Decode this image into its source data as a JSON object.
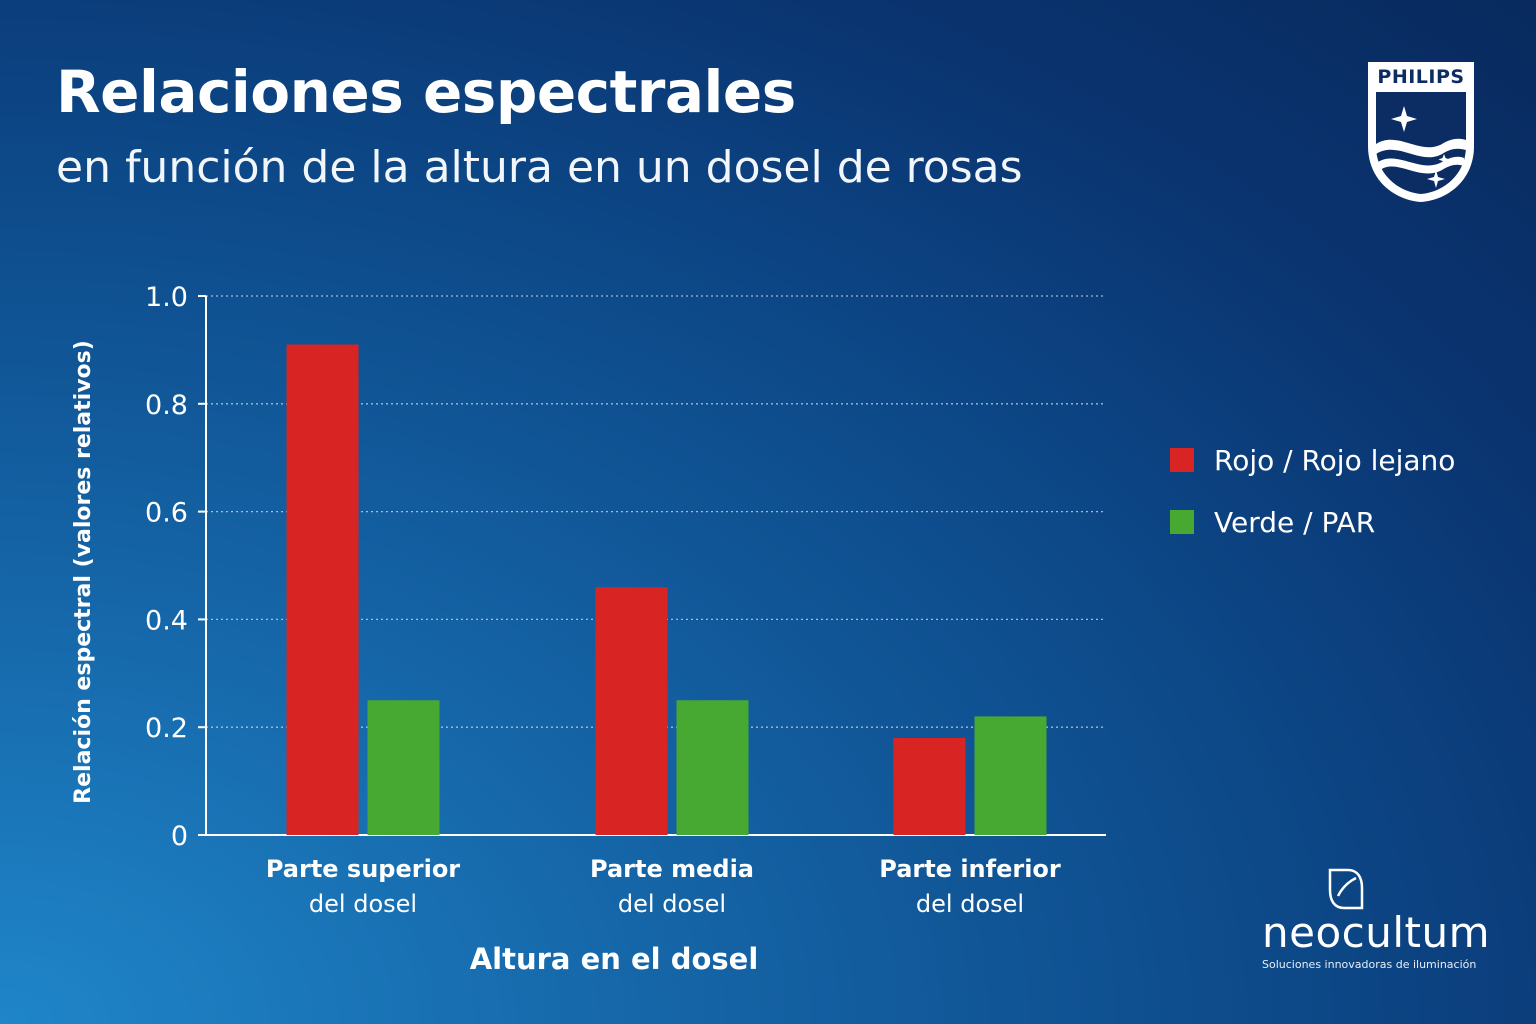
{
  "header": {
    "title": "Relaciones espectrales",
    "subtitle": "en función de la altura en un dosel de rosas"
  },
  "logo": {
    "text": "PHILIPS"
  },
  "brand": {
    "name": "neocultum",
    "tagline": "Soluciones innovadoras de iluminación"
  },
  "colors": {
    "red": "#d92424",
    "green": "#47a832",
    "background": "#0d4a8a"
  },
  "chart_data": {
    "type": "bar",
    "ylabel": "Relación espectral (valores relativos)",
    "xlabel": "Altura en el dosel",
    "ylim": [
      0,
      1.0
    ],
    "yticks": [
      "0",
      "0.2",
      "0.4",
      "0.6",
      "0.8",
      "1.0"
    ],
    "grid": true,
    "legend_position": "right",
    "categories": [
      {
        "line1": "Parte superior",
        "line2": "del dosel"
      },
      {
        "line1": "Parte media",
        "line2": "del dosel"
      },
      {
        "line1": "Parte inferior",
        "line2": "del dosel"
      }
    ],
    "series": [
      {
        "name": "Rojo / Rojo lejano",
        "color": "#d92424",
        "values": [
          0.91,
          0.46,
          0.18
        ]
      },
      {
        "name": "Verde / PAR",
        "color": "#47a832",
        "values": [
          0.25,
          0.25,
          0.22
        ]
      }
    ]
  }
}
